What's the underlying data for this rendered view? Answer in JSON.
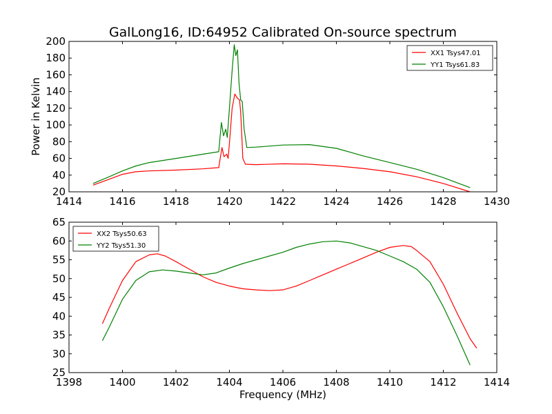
{
  "figure_title": "GalLong16, ID:64952 Calibrated On-source spectrum",
  "colors": {
    "red": "#ff0000",
    "green": "#008000"
  },
  "chart_data": [
    {
      "type": "line",
      "title": "GalLong16, ID:64952 Calibrated On-source spectrum",
      "xlabel": "",
      "ylabel": "Power in Kelvin",
      "xlim": [
        1414,
        1430
      ],
      "ylim": [
        20,
        200
      ],
      "xticks": [
        1414,
        1416,
        1418,
        1420,
        1422,
        1424,
        1426,
        1428,
        1430
      ],
      "yticks": [
        20,
        40,
        60,
        80,
        100,
        120,
        140,
        160,
        180,
        200
      ],
      "grid": false,
      "legend_position": "top-right",
      "series": [
        {
          "name": "XX1 Tsys47.01",
          "color": "#ff0000",
          "x": [
            1414.9,
            1415.5,
            1416.0,
            1416.5,
            1417.0,
            1418.0,
            1419.0,
            1419.6,
            1419.72,
            1419.8,
            1419.9,
            1419.95,
            1420.0,
            1420.1,
            1420.2,
            1420.3,
            1420.38,
            1420.42,
            1420.46,
            1420.5,
            1420.6,
            1421.0,
            1422.0,
            1423.0,
            1424.0,
            1425.0,
            1426.0,
            1427.0,
            1428.0,
            1429.0
          ],
          "y": [
            28,
            35,
            41,
            44,
            45,
            46,
            47.5,
            49,
            73,
            62,
            65,
            60,
            78,
            120,
            137,
            132,
            130,
            115,
            90,
            60,
            53,
            52.5,
            53.5,
            53,
            51,
            48,
            44,
            38,
            30,
            20
          ]
        },
        {
          "name": "YY1 Tsys61.83",
          "color": "#008000",
          "x": [
            1414.9,
            1415.5,
            1416.0,
            1416.5,
            1417.0,
            1418.0,
            1419.0,
            1419.6,
            1419.7,
            1419.78,
            1419.86,
            1419.92,
            1420.0,
            1420.1,
            1420.18,
            1420.24,
            1420.3,
            1420.36,
            1420.42,
            1420.48,
            1420.55,
            1420.65,
            1421.0,
            1422.0,
            1423.0,
            1424.0,
            1425.0,
            1426.0,
            1427.0,
            1428.0,
            1429.0
          ],
          "y": [
            30,
            38,
            45,
            51,
            55,
            60,
            65,
            68,
            103,
            87,
            95,
            85,
            120,
            165,
            196,
            183,
            190,
            150,
            130,
            128,
            95,
            73,
            73.5,
            76,
            76.5,
            72,
            63,
            55,
            47,
            37,
            25
          ]
        }
      ]
    },
    {
      "type": "line",
      "title": "",
      "xlabel": "Frequency (MHz)",
      "ylabel": "",
      "xlim": [
        1398,
        1414
      ],
      "ylim": [
        25,
        65
      ],
      "xticks": [
        1398,
        1400,
        1402,
        1404,
        1406,
        1408,
        1410,
        1412,
        1414
      ],
      "yticks": [
        25,
        30,
        35,
        40,
        45,
        50,
        55,
        60,
        65
      ],
      "grid": false,
      "legend_position": "top-left",
      "series": [
        {
          "name": "XX2 Tsys50.63",
          "color": "#ff0000",
          "x": [
            1399.25,
            1399.5,
            1400.0,
            1400.5,
            1401.0,
            1401.3,
            1401.6,
            1402.0,
            1402.5,
            1403.0,
            1403.5,
            1404.0,
            1404.5,
            1405.0,
            1405.5,
            1406.0,
            1406.5,
            1407.0,
            1407.5,
            1408.0,
            1408.5,
            1409.0,
            1409.5,
            1410.0,
            1410.5,
            1410.8,
            1411.0,
            1411.5,
            1412.0,
            1412.5,
            1413.0,
            1413.25
          ],
          "y": [
            38,
            42,
            49.5,
            54.5,
            56.3,
            56.6,
            56,
            54.5,
            52.5,
            50.5,
            49,
            48,
            47.3,
            47,
            46.8,
            47,
            48,
            49.5,
            51,
            52.5,
            54,
            55.5,
            57,
            58.3,
            58.8,
            58.5,
            57.5,
            54.5,
            48.5,
            41,
            34,
            31.5
          ]
        },
        {
          "name": "YY2 Tsys51.30",
          "color": "#008000",
          "x": [
            1399.25,
            1399.5,
            1400.0,
            1400.5,
            1401.0,
            1401.5,
            1402.0,
            1402.5,
            1403.0,
            1403.5,
            1404.0,
            1404.5,
            1405.0,
            1405.5,
            1406.0,
            1406.5,
            1407.0,
            1407.5,
            1408.0,
            1408.5,
            1409.0,
            1409.5,
            1410.0,
            1410.5,
            1411.0,
            1411.5,
            1412.0,
            1412.5,
            1413.0
          ],
          "y": [
            33.5,
            37,
            44.5,
            49.5,
            51.8,
            52.3,
            52,
            51.5,
            51,
            51.5,
            52.8,
            54,
            55,
            56,
            57,
            58.3,
            59.2,
            59.8,
            60,
            59.5,
            58.5,
            57.5,
            56,
            54.5,
            52.5,
            49,
            42.5,
            35,
            27
          ]
        }
      ]
    }
  ]
}
